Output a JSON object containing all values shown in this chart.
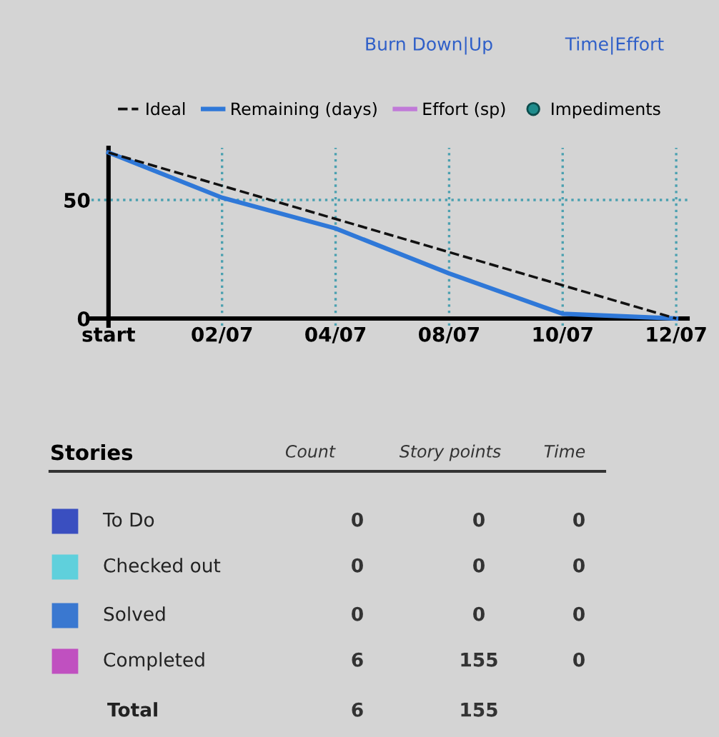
{
  "chart_data": [
    {
      "type": "line",
      "annotations": [
        "Burn Down|Up",
        "Time|Effort"
      ],
      "legend": "top",
      "grid": true,
      "line_style": "solid",
      "categories": [
        "start",
        "02/07",
        "04/07",
        "08/07",
        "10/07",
        "12/07"
      ],
      "ylim": [
        -3,
        72
      ],
      "yticks": [
        0,
        50
      ],
      "series": [
        {
          "name": "Ideal",
          "color": "#111111",
          "line_style": "dashed",
          "values": [
            70,
            56,
            42,
            28,
            14,
            0
          ]
        },
        {
          "name": "Remaining (days)",
          "color": "#2f78d8",
          "values": [
            70,
            51,
            38,
            19,
            2,
            0
          ]
        },
        {
          "name": "Effort (sp)",
          "color": "#c07ad8",
          "values": [
            null,
            null,
            null,
            null,
            null,
            null
          ]
        },
        {
          "name": "Impediments",
          "color": "#1f8c8c",
          "type": "scatter",
          "marker": "circle",
          "values": [
            null,
            null,
            null,
            null,
            null,
            null
          ]
        }
      ]
    },
    {
      "type": "other",
      "title": "Stories",
      "data_labels": true,
      "categories": [
        "To Do",
        "Checked out",
        "Solved",
        "Completed",
        "Total"
      ],
      "colors": [
        "#3a4fc0",
        "#5fd0dc",
        "#3a78d0",
        "#c050c0",
        null
      ],
      "series": [
        {
          "name": "Count",
          "values": [
            0,
            0,
            0,
            6,
            6
          ]
        },
        {
          "name": "Story points",
          "values": [
            0,
            0,
            0,
            155,
            155
          ]
        },
        {
          "name": "Time",
          "values": [
            0,
            0,
            0,
            0,
            null
          ]
        }
      ]
    }
  ]
}
